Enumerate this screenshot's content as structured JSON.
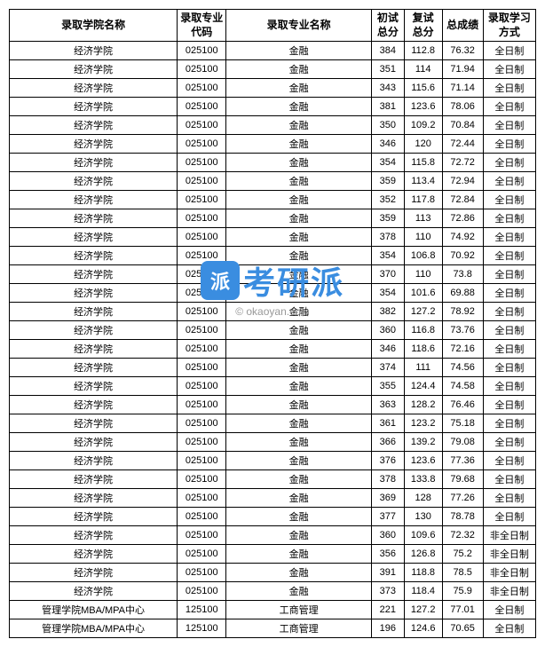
{
  "headers": {
    "school": "录取学院名称",
    "code": "录取专业\n代码",
    "major": "录取专业名称",
    "score1": "初试\n总分",
    "score2": "复试\n总分",
    "total": "总成绩",
    "mode": "录取学习\n方式"
  },
  "rows": [
    {
      "school": "经济学院",
      "code": "025100",
      "major": "金融",
      "s1": "384",
      "s2": "112.8",
      "total": "76.32",
      "mode": "全日制"
    },
    {
      "school": "经济学院",
      "code": "025100",
      "major": "金融",
      "s1": "351",
      "s2": "114",
      "total": "71.94",
      "mode": "全日制"
    },
    {
      "school": "经济学院",
      "code": "025100",
      "major": "金融",
      "s1": "343",
      "s2": "115.6",
      "total": "71.14",
      "mode": "全日制"
    },
    {
      "school": "经济学院",
      "code": "025100",
      "major": "金融",
      "s1": "381",
      "s2": "123.6",
      "total": "78.06",
      "mode": "全日制"
    },
    {
      "school": "经济学院",
      "code": "025100",
      "major": "金融",
      "s1": "350",
      "s2": "109.2",
      "total": "70.84",
      "mode": "全日制"
    },
    {
      "school": "经济学院",
      "code": "025100",
      "major": "金融",
      "s1": "346",
      "s2": "120",
      "total": "72.44",
      "mode": "全日制"
    },
    {
      "school": "经济学院",
      "code": "025100",
      "major": "金融",
      "s1": "354",
      "s2": "115.8",
      "total": "72.72",
      "mode": "全日制"
    },
    {
      "school": "经济学院",
      "code": "025100",
      "major": "金融",
      "s1": "359",
      "s2": "113.4",
      "total": "72.94",
      "mode": "全日制"
    },
    {
      "school": "经济学院",
      "code": "025100",
      "major": "金融",
      "s1": "352",
      "s2": "117.8",
      "total": "72.84",
      "mode": "全日制"
    },
    {
      "school": "经济学院",
      "code": "025100",
      "major": "金融",
      "s1": "359",
      "s2": "113",
      "total": "72.86",
      "mode": "全日制"
    },
    {
      "school": "经济学院",
      "code": "025100",
      "major": "金融",
      "s1": "378",
      "s2": "110",
      "total": "74.92",
      "mode": "全日制"
    },
    {
      "school": "经济学院",
      "code": "025100",
      "major": "金融",
      "s1": "354",
      "s2": "106.8",
      "total": "70.92",
      "mode": "全日制"
    },
    {
      "school": "经济学院",
      "code": "025100",
      "major": "金融",
      "s1": "370",
      "s2": "110",
      "total": "73.8",
      "mode": "全日制"
    },
    {
      "school": "经济学院",
      "code": "025100",
      "major": "金融",
      "s1": "354",
      "s2": "101.6",
      "total": "69.88",
      "mode": "全日制"
    },
    {
      "school": "经济学院",
      "code": "025100",
      "major": "金融",
      "s1": "382",
      "s2": "127.2",
      "total": "78.92",
      "mode": "全日制"
    },
    {
      "school": "经济学院",
      "code": "025100",
      "major": "金融",
      "s1": "360",
      "s2": "116.8",
      "total": "73.76",
      "mode": "全日制"
    },
    {
      "school": "经济学院",
      "code": "025100",
      "major": "金融",
      "s1": "346",
      "s2": "118.6",
      "total": "72.16",
      "mode": "全日制"
    },
    {
      "school": "经济学院",
      "code": "025100",
      "major": "金融",
      "s1": "374",
      "s2": "111",
      "total": "74.56",
      "mode": "全日制"
    },
    {
      "school": "经济学院",
      "code": "025100",
      "major": "金融",
      "s1": "355",
      "s2": "124.4",
      "total": "74.58",
      "mode": "全日制"
    },
    {
      "school": "经济学院",
      "code": "025100",
      "major": "金融",
      "s1": "363",
      "s2": "128.2",
      "total": "76.46",
      "mode": "全日制"
    },
    {
      "school": "经济学院",
      "code": "025100",
      "major": "金融",
      "s1": "361",
      "s2": "123.2",
      "total": "75.18",
      "mode": "全日制"
    },
    {
      "school": "经济学院",
      "code": "025100",
      "major": "金融",
      "s1": "366",
      "s2": "139.2",
      "total": "79.08",
      "mode": "全日制"
    },
    {
      "school": "经济学院",
      "code": "025100",
      "major": "金融",
      "s1": "376",
      "s2": "123.6",
      "total": "77.36",
      "mode": "全日制"
    },
    {
      "school": "经济学院",
      "code": "025100",
      "major": "金融",
      "s1": "378",
      "s2": "133.8",
      "total": "79.68",
      "mode": "全日制"
    },
    {
      "school": "经济学院",
      "code": "025100",
      "major": "金融",
      "s1": "369",
      "s2": "128",
      "total": "77.26",
      "mode": "全日制"
    },
    {
      "school": "经济学院",
      "code": "025100",
      "major": "金融",
      "s1": "377",
      "s2": "130",
      "total": "78.78",
      "mode": "全日制"
    },
    {
      "school": "经济学院",
      "code": "025100",
      "major": "金融",
      "s1": "360",
      "s2": "109.6",
      "total": "72.32",
      "mode": "非全日制"
    },
    {
      "school": "经济学院",
      "code": "025100",
      "major": "金融",
      "s1": "356",
      "s2": "126.8",
      "total": "75.2",
      "mode": "非全日制"
    },
    {
      "school": "经济学院",
      "code": "025100",
      "major": "金融",
      "s1": "391",
      "s2": "118.8",
      "total": "78.5",
      "mode": "非全日制"
    },
    {
      "school": "经济学院",
      "code": "025100",
      "major": "金融",
      "s1": "373",
      "s2": "118.4",
      "total": "75.9",
      "mode": "非全日制"
    },
    {
      "school": "管理学院MBA/MPA中心",
      "code": "125100",
      "major": "工商管理",
      "s1": "221",
      "s2": "127.2",
      "total": "77.01",
      "mode": "全日制"
    },
    {
      "school": "管理学院MBA/MPA中心",
      "code": "125100",
      "major": "工商管理",
      "s1": "196",
      "s2": "124.6",
      "total": "70.65",
      "mode": "全日制"
    }
  ],
  "watermark": {
    "text": "考研派",
    "url": "© okaoyan.com"
  },
  "colors": {
    "border": "#000000",
    "watermark_brand": "#3a8de0",
    "watermark_url": "#999999",
    "background": "#ffffff"
  }
}
